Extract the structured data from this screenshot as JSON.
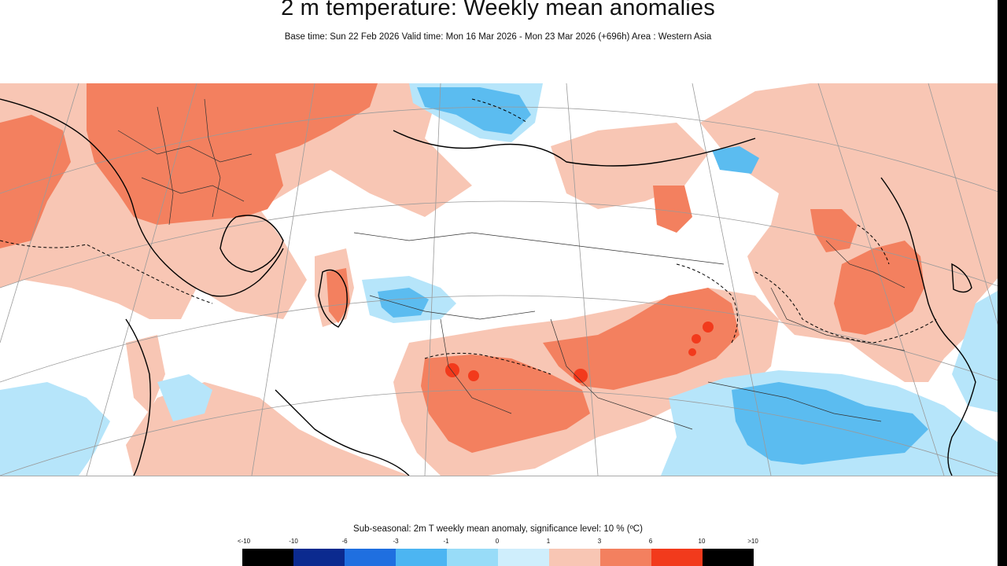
{
  "title": "2 m temperature: Weekly mean anomalies",
  "subtitle": "Base time: Sun 22 Feb 2026 Valid time: Mon 16 Mar 2026 - Mon 23 Mar 2026 (+696h) Area : Western Asia",
  "legend": {
    "title": "Sub-seasonal: 2m T weekly mean anomaly, significance level: 10 % (ºC)",
    "tick_labels": [
      "<-10",
      "-10",
      "-6",
      "-3",
      "-1",
      "0",
      "1",
      "3",
      "6",
      "10",
      ">10"
    ],
    "colors": [
      "#000000",
      "#0b2a8f",
      "#1f6fe0",
      "#4cb5f2",
      "#98dcf8",
      "#cfeefc",
      "#f8c6b4",
      "#f3805f",
      "#f23a1c",
      "#9c1208",
      "#000000"
    ]
  },
  "map_colors": {
    "warm_light": "#f8c6b4",
    "warm_mid": "#f3805f",
    "warm_strong": "#f23a1c",
    "cool_light": "#b6e5fa",
    "cool_mid": "#5bbcf0"
  }
}
